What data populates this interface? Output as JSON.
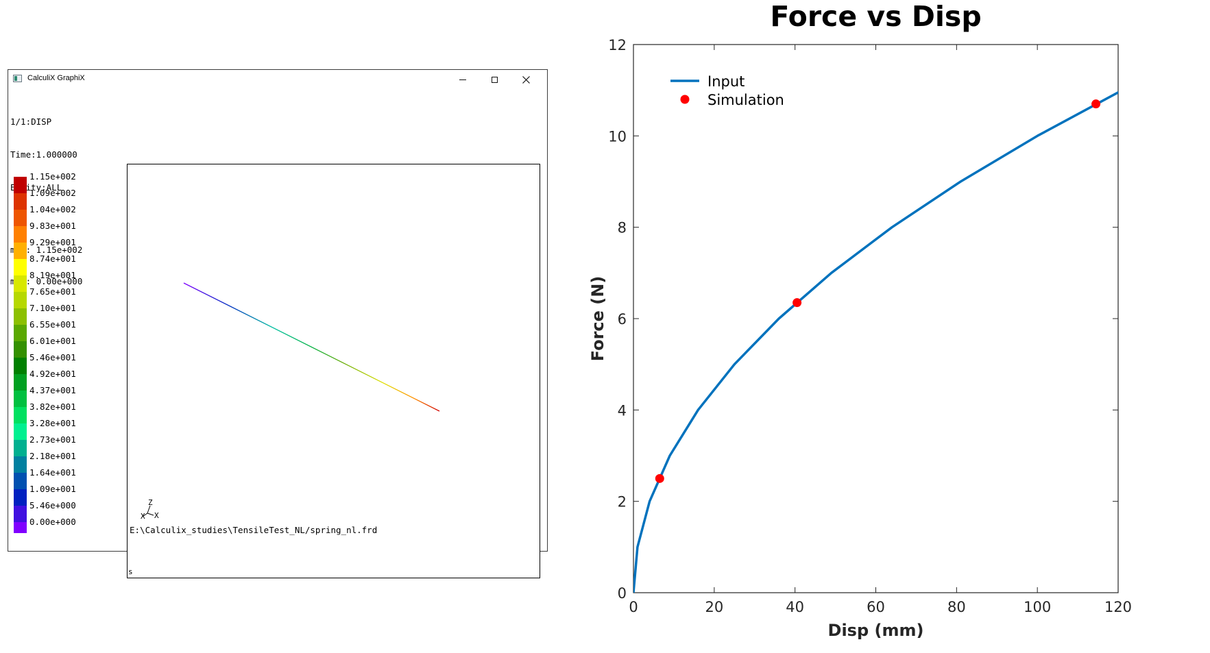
{
  "cgx": {
    "window_title": "CalculiX GraphiX",
    "info_lines": [
      "1/1:DISP",
      "Time:1.000000",
      "Entity:ALL"
    ],
    "max_line": "max: 1.15e+002",
    "min_line": "min: 0.00e+000",
    "legend": [
      {
        "label": "1.15e+002",
        "color": "#c00000"
      },
      {
        "label": "1.09e+002",
        "color": "#dd3300"
      },
      {
        "label": "1.04e+002",
        "color": "#ee5500"
      },
      {
        "label": "9.83e+001",
        "color": "#ff8000"
      },
      {
        "label": "9.29e+001",
        "color": "#ffb000"
      },
      {
        "label": "8.74e+001",
        "color": "#ffff00"
      },
      {
        "label": "8.19e+001",
        "color": "#d8e800"
      },
      {
        "label": "7.65e+001",
        "color": "#b6d800"
      },
      {
        "label": "7.10e+001",
        "color": "#8cc000"
      },
      {
        "label": "6.55e+001",
        "color": "#5aa800"
      },
      {
        "label": "6.01e+001",
        "color": "#339000"
      },
      {
        "label": "5.46e+001",
        "color": "#008000"
      },
      {
        "label": "4.92e+001",
        "color": "#00a020"
      },
      {
        "label": "4.37e+001",
        "color": "#00c040"
      },
      {
        "label": "3.82e+001",
        "color": "#00e060"
      },
      {
        "label": "3.28e+001",
        "color": "#00f090"
      },
      {
        "label": "2.73e+001",
        "color": "#00b090"
      },
      {
        "label": "2.18e+001",
        "color": "#0080a0"
      },
      {
        "label": "1.64e+001",
        "color": "#0050b0"
      },
      {
        "label": "1.09e+001",
        "color": "#0020c0"
      },
      {
        "label": "5.46e+000",
        "color": "#4010e0"
      },
      {
        "label": "0.00e+000",
        "color": "#8000ff"
      }
    ],
    "file_path": "E:\\Calculix_studies\\TensileTest_NL/spring_nl.frd",
    "triad": {
      "z": "Z",
      "x": "X",
      "y": "X"
    },
    "corner_mark": "s"
  },
  "chart_data": {
    "type": "line",
    "title": "Force vs Disp",
    "xlabel": "Disp (mm)",
    "ylabel": "Force (N)",
    "xlim": [
      0,
      120
    ],
    "ylim": [
      0,
      12
    ],
    "xticks": [
      0,
      20,
      40,
      60,
      80,
      100,
      120
    ],
    "yticks": [
      0,
      2,
      4,
      6,
      8,
      10,
      12
    ],
    "grid": false,
    "legend_position": "top-left",
    "series": [
      {
        "name": "Input",
        "style": "line",
        "color": "#0072bd",
        "x": [
          0,
          1,
          4,
          9,
          16,
          25,
          36,
          49,
          64,
          81,
          100,
          121
        ],
        "y": [
          0,
          1,
          2,
          3,
          4,
          5,
          6,
          7,
          8,
          9,
          10,
          11
        ]
      },
      {
        "name": "Simulation",
        "style": "marker",
        "color": "#ff0000",
        "x": [
          6.5,
          40.5,
          114.5
        ],
        "y": [
          2.5,
          6.35,
          10.7
        ]
      }
    ]
  }
}
